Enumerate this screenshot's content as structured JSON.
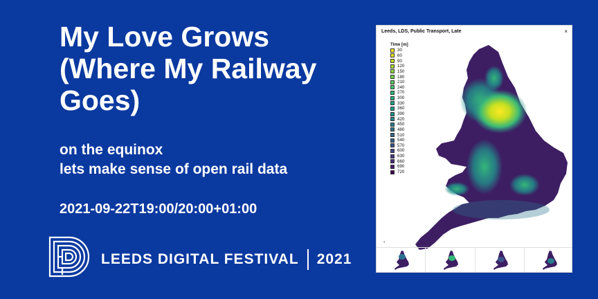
{
  "headline": {
    "line1": "My Love Grows",
    "line2": "(Where My Railway",
    "line3": "Goes)"
  },
  "subtitle": {
    "line1": "on the equinox",
    "line2": "lets make sense of open rail data"
  },
  "datetime": "2021-09-22T19:00/20:00+01:00",
  "festival": {
    "name": "LEEDS DIGITAL FESTIVAL",
    "year": "2021",
    "logo_icon": "ldf-logo-icon"
  },
  "map_panel": {
    "title": "Leeds, LDS, Public Transport, Late",
    "close": "×",
    "legend_title": "Time [m]",
    "legend": [
      {
        "value": "30",
        "color": "#fde725"
      },
      {
        "value": "60",
        "color": "#e4e419"
      },
      {
        "value": "90",
        "color": "#c8e020"
      },
      {
        "value": "120",
        "color": "#addc30"
      },
      {
        "value": "150",
        "color": "#90d743"
      },
      {
        "value": "180",
        "color": "#75d054"
      },
      {
        "value": "210",
        "color": "#5ec962"
      },
      {
        "value": "240",
        "color": "#48c16e"
      },
      {
        "value": "270",
        "color": "#35b779"
      },
      {
        "value": "300",
        "color": "#28ae80"
      },
      {
        "value": "330",
        "color": "#20a486"
      },
      {
        "value": "360",
        "color": "#1f9a8a"
      },
      {
        "value": "390",
        "color": "#21918c"
      },
      {
        "value": "420",
        "color": "#24868e"
      },
      {
        "value": "450",
        "color": "#287c8e"
      },
      {
        "value": "480",
        "color": "#2c728e"
      },
      {
        "value": "510",
        "color": "#31688e"
      },
      {
        "value": "540",
        "color": "#355f8d"
      },
      {
        "value": "570",
        "color": "#3b528b"
      },
      {
        "value": "600",
        "color": "#404688"
      },
      {
        "value": "630",
        "color": "#443983"
      },
      {
        "value": "660",
        "color": "#472c7a"
      },
      {
        "value": "690",
        "color": "#481d6f"
      },
      {
        "value": "720",
        "color": "#440154"
      }
    ],
    "thumbnail_count": 4
  },
  "colors": {
    "background": "#0a39a0",
    "text": "#ffffff",
    "land_base": "#3d1e63",
    "land_mid": "#2a8a8c",
    "land_hot": "#d9e021"
  }
}
